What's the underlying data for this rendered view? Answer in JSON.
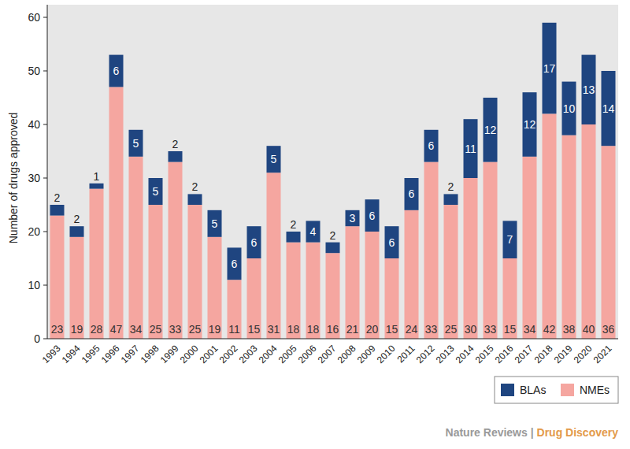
{
  "chart_data": {
    "type": "bar",
    "stacked": true,
    "data_labels": true,
    "grid": false,
    "legend": "bottom-right",
    "y_label": "Number of drugs approved",
    "categories": [
      "1993",
      "1994",
      "1995",
      "1996",
      "1997",
      "1998",
      "1999",
      "2000",
      "2001",
      "2002",
      "2003",
      "2004",
      "2005",
      "2006",
      "2007",
      "2008",
      "2009",
      "2010",
      "2011",
      "2012",
      "2013",
      "2014",
      "2015",
      "2016",
      "2017",
      "2018",
      "2019",
      "2020",
      "2021"
    ],
    "series": [
      {
        "name": "NMEs",
        "color": "#f5a6a0",
        "values": [
          23,
          19,
          28,
          47,
          34,
          25,
          33,
          25,
          19,
          11,
          15,
          31,
          18,
          18,
          16,
          21,
          20,
          15,
          24,
          33,
          25,
          30,
          33,
          15,
          34,
          42,
          38,
          40,
          36
        ]
      },
      {
        "name": "BLAs",
        "color": "#1f4580",
        "values": [
          2,
          2,
          1,
          6,
          5,
          5,
          2,
          2,
          5,
          6,
          6,
          5,
          2,
          4,
          2,
          3,
          6,
          6,
          6,
          6,
          2,
          11,
          12,
          7,
          12,
          17,
          10,
          13,
          14
        ]
      }
    ],
    "ylim": [
      0,
      60
    ],
    "yticks": [
      0,
      10,
      20,
      30,
      40,
      50,
      60
    ],
    "annotations": [
      "Nature Reviews",
      "|",
      "Drug Discovery"
    ]
  }
}
